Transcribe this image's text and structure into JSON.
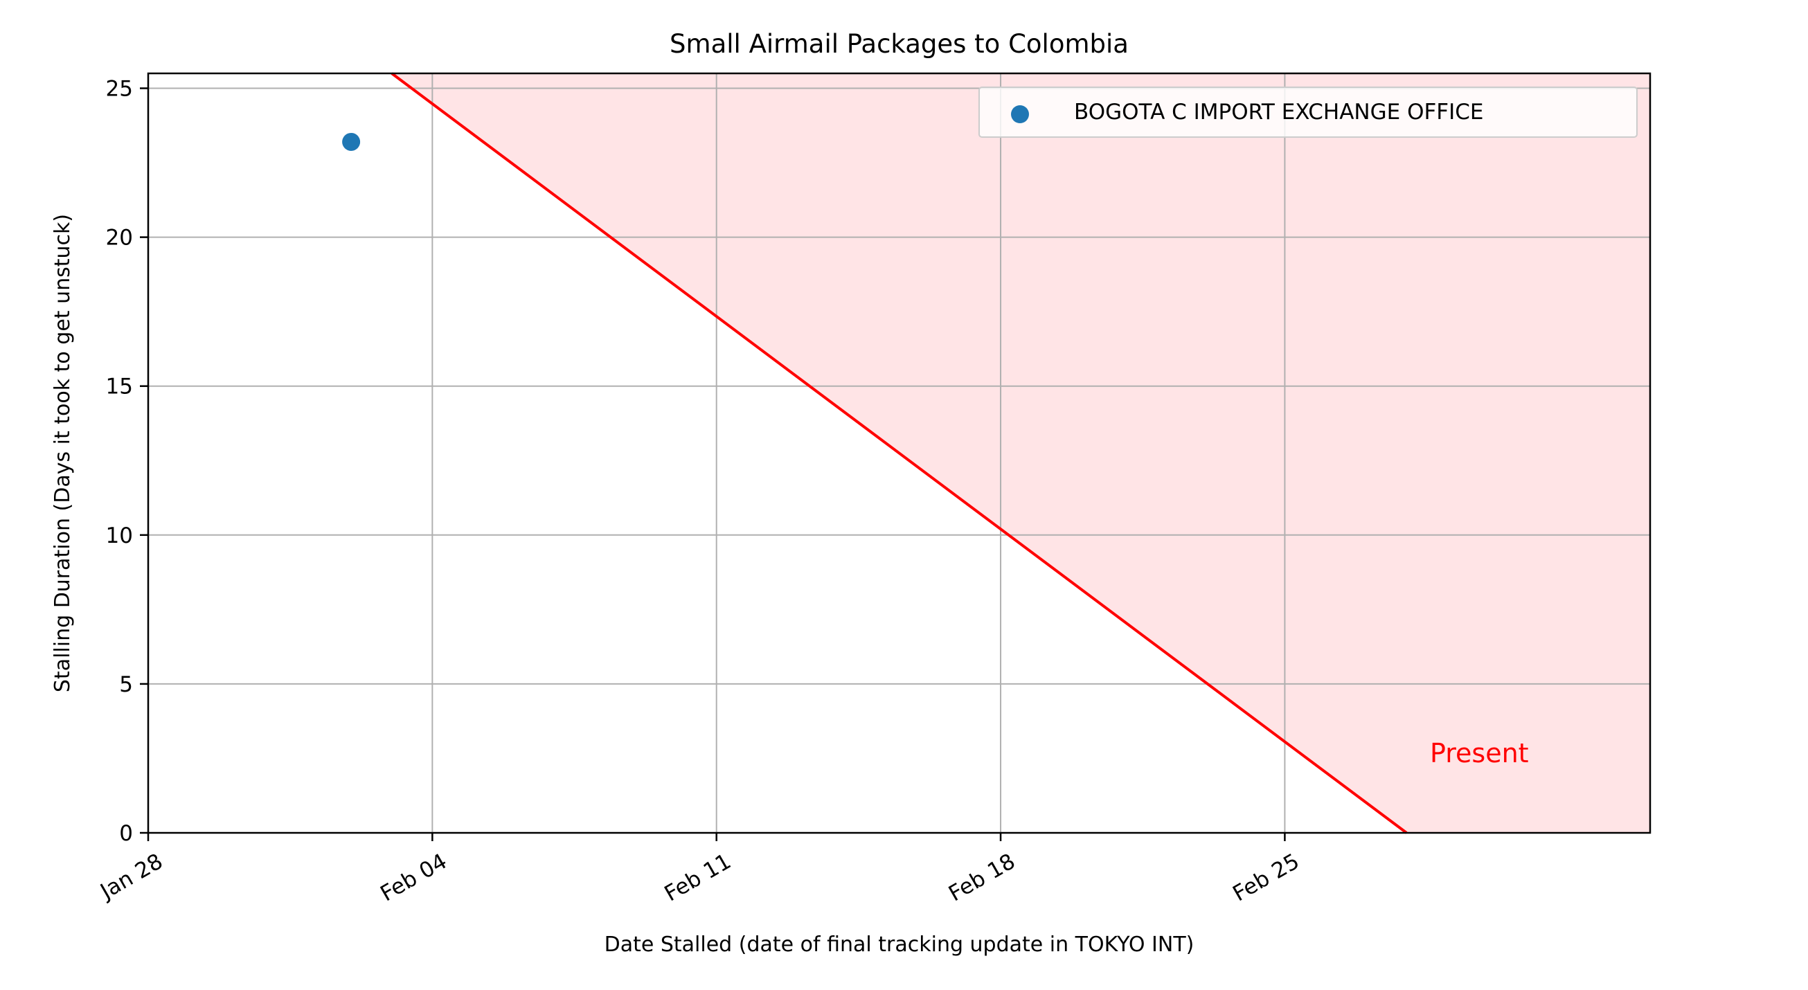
{
  "chart_data": {
    "type": "scatter",
    "title": "Small Airmail Packages to Colombia",
    "xlabel": "Date Stalled (date of final tracking update in TOKYO INT)",
    "ylabel": "Stalling Duration (Days it took to get unstuck)",
    "x_axis": {
      "kind": "date",
      "range": [
        "2024-01-28",
        "2024-03-05"
      ],
      "ticks": [
        {
          "date": "2024-01-28",
          "label": "Jan 28"
        },
        {
          "date": "2024-02-04",
          "label": "Feb 04"
        },
        {
          "date": "2024-02-11",
          "label": "Feb 11"
        },
        {
          "date": "2024-02-18",
          "label": "Feb 18"
        },
        {
          "date": "2024-02-25",
          "label": "Feb 25"
        }
      ],
      "tick_rotation": "30 degrees"
    },
    "y_axis": {
      "range": [
        0,
        25.5
      ],
      "ticks": [
        0,
        5,
        10,
        15,
        20,
        25
      ]
    },
    "grid": true,
    "legend_position": "upper right",
    "series": [
      {
        "name": "BOGOTA C IMPORT EXCHANGE OFFICE",
        "color": "#1f77b4",
        "points": [
          {
            "x": "2024-02-02",
            "y": 23.2
          }
        ]
      }
    ],
    "present_line": {
      "label": "Present",
      "color": "#ff0000",
      "fill_color": "#ffe4e6",
      "present_date": "2024-02-28",
      "points": [
        {
          "x": "2024-02-03",
          "y": 25.5
        },
        {
          "x": "2024-02-28",
          "y": 0
        }
      ]
    }
  }
}
